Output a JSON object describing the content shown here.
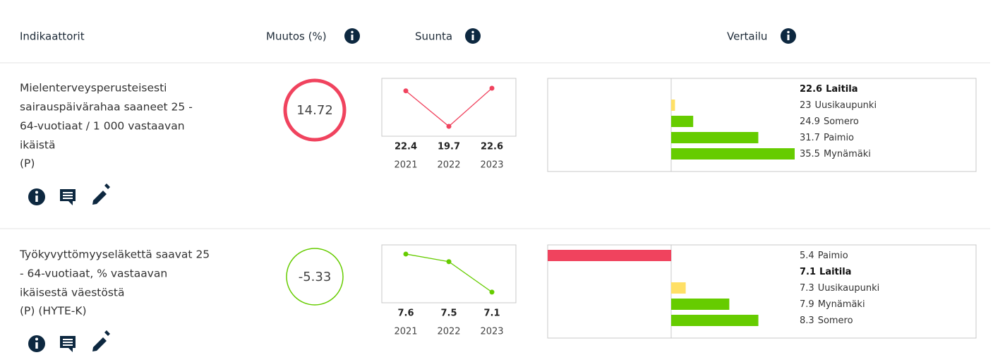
{
  "header": {
    "columns": [
      "Indikaattorit",
      "Muutos (%)",
      "Suunta",
      "Vertailu"
    ]
  },
  "rows": [
    {
      "label_lines": [
        "Mielenterveysperusteisesti",
        "sairauspäivärahaa saaneet 25 -",
        "64-vuotiaat / 1 000 vastaavan",
        "ikäistä"
      ],
      "tags": "(P)",
      "change": 14.72,
      "change_color": "#f0435e",
      "change_emphasis": true,
      "trend": {
        "type": "line",
        "x": [
          "2021",
          "2022",
          "2023"
        ],
        "values": [
          22.4,
          19.7,
          22.6
        ],
        "color": "#f0435e",
        "ylim": [
          18.95,
          23.35
        ]
      },
      "comparison": {
        "type": "bar",
        "categories": [
          "Laitila",
          "Uusikaupunki",
          "Somero",
          "Paimio",
          "Mynämäki"
        ],
        "values": [
          22.6,
          23,
          24.9,
          31.7,
          35.5
        ],
        "colors": [
          "#66cc00",
          "#ffe066",
          "#66cc00",
          "#66cc00",
          "#66cc00"
        ],
        "highlight_index": 0
      }
    },
    {
      "label_lines": [
        "Työkyvyttömyyseläkettä saavat 25",
        "- 64-vuotiaat, % vastaavan",
        "ikäisestä väestöstä"
      ],
      "tags": "(P) (HYTE-K)",
      "change": -5.33,
      "change_color": "#66cc00",
      "change_emphasis": false,
      "trend": {
        "type": "line",
        "x": [
          "2021",
          "2022",
          "2023"
        ],
        "values": [
          7.6,
          7.5,
          7.1
        ],
        "color": "#66cc00",
        "ylim": [
          6.96,
          7.72
        ]
      },
      "comparison": {
        "type": "bar",
        "categories": [
          "Paimio",
          "Laitila",
          "Uusikaupunki",
          "Mynämäki",
          "Somero"
        ],
        "values": [
          5.4,
          7.1,
          7.3,
          7.9,
          8.3
        ],
        "colors": [
          "#f0435e",
          "#66cc00",
          "#ffe066",
          "#66cc00",
          "#66cc00"
        ],
        "highlight_index": 1
      }
    }
  ]
}
